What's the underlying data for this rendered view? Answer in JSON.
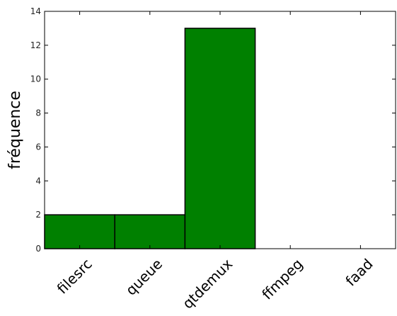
{
  "chart_data": {
    "type": "bar",
    "categories": [
      "filesrc",
      "queue",
      "qtdemux",
      "ffmpeg",
      "faad"
    ],
    "values": [
      2,
      2,
      13,
      0,
      0
    ],
    "title": "",
    "xlabel": "",
    "ylabel": "fréquence",
    "ylim": [
      0,
      14
    ],
    "yticks": [
      0,
      2,
      4,
      6,
      8,
      10,
      12,
      14
    ],
    "grid": false,
    "bar_color": "#008000",
    "edge_color": "#000000"
  }
}
